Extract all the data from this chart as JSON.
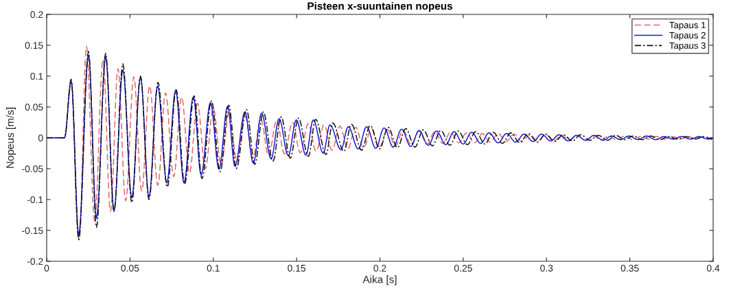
{
  "chart_data": {
    "type": "line",
    "title": "Pisteen x-suuntainen nopeus",
    "xlabel": "Aika [s]",
    "ylabel": "Nopeus [m/s]",
    "xlim": [
      0,
      0.4
    ],
    "ylim": [
      -0.2,
      0.2
    ],
    "xticks": [
      0,
      0.05,
      0.1,
      0.15,
      0.2,
      0.25,
      0.3,
      0.35,
      0.4
    ],
    "yticks": [
      -0.2,
      -0.15,
      -0.1,
      -0.05,
      0,
      0.05,
      0.1,
      0.15,
      0.2
    ],
    "grid": false,
    "legend": "top right",
    "marker": "none",
    "series": [
      {
        "name": "Tapaus 1",
        "color": "#e06666",
        "line_style": "dashed",
        "x": [
          0,
          0.0107,
          0.0147,
          0.0195,
          0.0239,
          0.0288,
          0.0338,
          0.0383,
          0.0428,
          0.0474,
          0.0523,
          0.057,
          0.0618,
          0.0667,
          0.0713,
          0.0762,
          0.081,
          0.0857,
          0.0905,
          0.0952,
          0.1,
          0.1047,
          0.1095,
          0.1142,
          0.119,
          0.1237,
          0.1285,
          0.1332,
          0.138,
          0.1427,
          0.1475,
          0.1522,
          0.157,
          0.1617,
          0.1665,
          0.1712,
          0.176,
          0.1807,
          0.1855,
          0.1902,
          0.195,
          0.1997,
          0.2045,
          0.2092,
          0.214,
          0.2187,
          0.2235,
          0.2282,
          0.233,
          0.2377,
          0.2425,
          0.2472,
          0.252,
          0.2567,
          0.2615,
          0.2662,
          0.271,
          0.2757,
          0.2805,
          0.2852,
          0.29,
          0.2947,
          0.2995,
          0.3042,
          0.309,
          0.3137,
          0.3185,
          0.3232,
          0.328,
          0.3327,
          0.3375,
          0.3422,
          0.347,
          0.3517,
          0.3565,
          0.3612,
          0.366,
          0.3707,
          0.3755,
          0.3802,
          0.385,
          0.3897,
          0.3945,
          0.3992,
          0.4
        ],
        "values": [
          0,
          0,
          0.09,
          -0.165,
          0.148,
          -0.136,
          0.127,
          -0.119,
          0.112,
          -0.102,
          0.099,
          -0.086,
          0.084,
          -0.077,
          0.073,
          -0.063,
          0.066,
          -0.057,
          0.056,
          -0.05,
          0.048,
          -0.044,
          0.042,
          -0.038,
          0.036,
          -0.033,
          0.031,
          -0.029,
          0.028,
          -0.026,
          0.025,
          -0.024,
          0.023,
          -0.022,
          0.021,
          -0.02,
          0.019,
          -0.018,
          0.017,
          -0.016,
          0.015,
          -0.014,
          0.013,
          -0.013,
          0.012,
          -0.011,
          0.011,
          -0.01,
          0.01,
          -0.009,
          0.009,
          -0.008,
          0.008,
          -0.008,
          0.007,
          -0.007,
          0.007,
          -0.006,
          0.006,
          -0.006,
          0.005,
          -0.005,
          0.005,
          -0.005,
          0.004,
          -0.004,
          0.004,
          -0.004,
          0.003,
          -0.003,
          0.003,
          -0.003,
          0.003,
          -0.003,
          0.002,
          -0.002,
          0.002,
          -0.002,
          0.002,
          -0.002,
          0.002,
          -0.002,
          0.002,
          -0.002,
          0
        ]
      },
      {
        "name": "Tapaus 2",
        "color": "#1a1acc",
        "line_style": "solid",
        "x": [
          0,
          0.0107,
          0.0147,
          0.0192,
          0.0251,
          0.0299,
          0.0354,
          0.0404,
          0.0457,
          0.0511,
          0.0563,
          0.0614,
          0.0666,
          0.0721,
          0.0774,
          0.0824,
          0.088,
          0.0927,
          0.0983,
          0.1034,
          0.1086,
          0.113,
          0.119,
          0.124,
          0.129,
          0.1347,
          0.1395,
          0.145,
          0.1498,
          0.1556,
          0.16,
          0.166,
          0.17,
          0.1766,
          0.181,
          0.187,
          0.192,
          0.1975,
          0.2025,
          0.208,
          0.213,
          0.2185,
          0.2235,
          0.229,
          0.234,
          0.2395,
          0.2445,
          0.25,
          0.255,
          0.2605,
          0.2655,
          0.271,
          0.276,
          0.2815,
          0.2865,
          0.292,
          0.297,
          0.3025,
          0.3075,
          0.313,
          0.318,
          0.3235,
          0.3285,
          0.334,
          0.339,
          0.3445,
          0.3495,
          0.355,
          0.36,
          0.3655,
          0.3705,
          0.376,
          0.381,
          0.3865,
          0.3915,
          0.397,
          0.4
        ],
        "values": [
          0,
          0,
          0.092,
          -0.157,
          0.134,
          -0.13,
          0.131,
          -0.118,
          0.11,
          -0.097,
          0.098,
          -0.096,
          0.084,
          -0.073,
          0.077,
          -0.073,
          0.066,
          -0.06,
          0.057,
          -0.051,
          0.051,
          -0.046,
          0.042,
          -0.041,
          0.04,
          -0.034,
          0.031,
          -0.029,
          0.029,
          -0.028,
          0.029,
          -0.025,
          0.021,
          -0.019,
          0.018,
          -0.018,
          0.018,
          -0.017,
          0.016,
          -0.015,
          0.014,
          -0.014,
          0.012,
          -0.012,
          0.011,
          -0.011,
          0.01,
          -0.01,
          0.009,
          -0.009,
          0.008,
          -0.008,
          0.007,
          -0.007,
          0.006,
          -0.006,
          0.006,
          -0.005,
          0.005,
          -0.005,
          0.004,
          -0.004,
          0.004,
          -0.004,
          0.003,
          -0.003,
          0.003,
          -0.003,
          0.003,
          -0.003,
          0.002,
          -0.002,
          0.002,
          -0.002,
          0.002,
          -0.002,
          0
        ]
      },
      {
        "name": "Tapaus 3",
        "color": "#111111",
        "line_style": "dashdot",
        "x": [
          0,
          0.0107,
          0.0147,
          0.0192,
          0.0251,
          0.0299,
          0.0354,
          0.0404,
          0.0457,
          0.0511,
          0.0563,
          0.0614,
          0.0668,
          0.0724,
          0.0777,
          0.0828,
          0.0885,
          0.0932,
          0.0989,
          0.1041,
          0.1093,
          0.1138,
          0.1199,
          0.1249,
          0.13,
          0.1358,
          0.1407,
          0.1462,
          0.1511,
          0.157,
          0.1615,
          0.1676,
          0.1717,
          0.1784,
          0.1829,
          0.189,
          0.1942,
          0.1998,
          0.2049,
          0.2105,
          0.2155,
          0.221,
          0.226,
          0.2315,
          0.2365,
          0.242,
          0.247,
          0.2525,
          0.2575,
          0.263,
          0.268,
          0.2735,
          0.2785,
          0.284,
          0.289,
          0.2945,
          0.2995,
          0.305,
          0.31,
          0.3155,
          0.3205,
          0.326,
          0.331,
          0.3365,
          0.3415,
          0.347,
          0.352,
          0.3575,
          0.3625,
          0.368,
          0.373,
          0.3785,
          0.3835,
          0.389,
          0.394,
          0.3995
        ],
        "values": [
          0,
          0,
          0.095,
          -0.165,
          0.14,
          -0.145,
          0.137,
          -0.12,
          0.12,
          -0.105,
          0.1,
          -0.1,
          0.09,
          -0.08,
          0.078,
          -0.075,
          0.068,
          -0.066,
          0.06,
          -0.055,
          0.053,
          -0.05,
          0.046,
          -0.043,
          0.042,
          -0.038,
          0.034,
          -0.033,
          0.032,
          -0.03,
          0.03,
          -0.027,
          0.024,
          -0.022,
          0.022,
          -0.02,
          0.02,
          -0.018,
          0.017,
          -0.016,
          0.015,
          -0.015,
          0.013,
          -0.013,
          0.012,
          -0.012,
          0.011,
          -0.011,
          0.01,
          -0.01,
          0.009,
          -0.009,
          0.008,
          -0.008,
          0.007,
          -0.007,
          0.006,
          -0.006,
          0.005,
          -0.005,
          0.005,
          -0.004,
          0.004,
          -0.004,
          0.004,
          -0.003,
          0.003,
          -0.003,
          0.003,
          -0.003,
          0.002,
          -0.002,
          0.002,
          -0.002,
          0.002,
          -0.002
        ]
      }
    ]
  }
}
